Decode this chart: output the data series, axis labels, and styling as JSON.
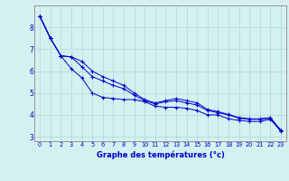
{
  "title": "Graphe des températures (°c)",
  "background_color": "#d4f0f0",
  "grid_color": "#b0d8d8",
  "line_color": "#0000cc",
  "xlim": [
    -0.5,
    23.5
  ],
  "ylim": [
    2.8,
    9.0
  ],
  "xticks": [
    0,
    1,
    2,
    3,
    4,
    5,
    6,
    7,
    8,
    9,
    10,
    11,
    12,
    13,
    14,
    15,
    16,
    17,
    18,
    19,
    20,
    21,
    22,
    23
  ],
  "yticks": [
    3,
    4,
    5,
    6,
    7,
    8
  ],
  "series": [
    [
      8.5,
      7.5,
      null,
      null,
      null,
      null,
      null,
      null,
      null,
      null,
      null,
      null,
      null,
      null,
      null,
      null,
      null,
      null,
      null,
      null,
      null,
      null,
      null,
      null
    ],
    [
      8.5,
      7.5,
      6.7,
      6.1,
      5.7,
      5.0,
      4.8,
      4.75,
      4.7,
      4.7,
      4.6,
      4.4,
      4.35,
      4.35,
      4.3,
      4.2,
      4.0,
      4.0,
      3.82,
      3.75,
      3.7,
      3.7,
      3.8,
      3.25
    ],
    [
      8.5,
      7.5,
      6.7,
      6.65,
      6.2,
      5.75,
      5.55,
      5.35,
      5.2,
      4.9,
      4.65,
      4.5,
      4.6,
      4.65,
      4.55,
      4.45,
      4.2,
      4.1,
      4.0,
      3.85,
      3.8,
      3.8,
      3.85,
      3.3
    ],
    [
      8.5,
      7.5,
      6.7,
      6.65,
      6.45,
      6.0,
      5.75,
      5.55,
      5.35,
      5.0,
      4.7,
      4.55,
      4.65,
      4.75,
      4.65,
      4.55,
      4.25,
      4.15,
      4.02,
      3.88,
      3.82,
      3.82,
      3.88,
      3.28
    ]
  ]
}
